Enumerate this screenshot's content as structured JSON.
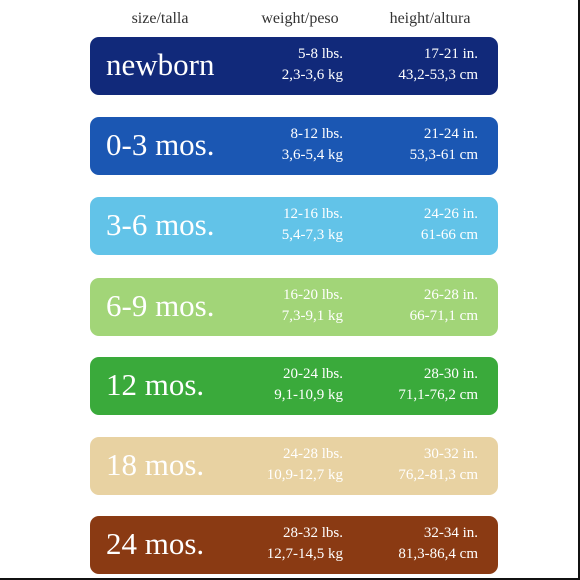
{
  "header": {
    "size": "size/talla",
    "weight": "weight/peso",
    "height": "height/altura"
  },
  "rows": [
    {
      "size": "newborn",
      "weight_lbs": "5-8 lbs.",
      "weight_kg": "2,3-3,6 kg",
      "height_in": "17-21 in.",
      "height_cm": "43,2-53,3 cm",
      "color": "#11297a"
    },
    {
      "size": "0-3 mos.",
      "weight_lbs": "8-12 lbs.",
      "weight_kg": "3,6-5,4 kg",
      "height_in": "21-24 in.",
      "height_cm": "53,3-61 cm",
      "color": "#1b57b3"
    },
    {
      "size": "3-6 mos.",
      "weight_lbs": "12-16 lbs.",
      "weight_kg": "5,4-7,3 kg",
      "height_in": "24-26 in.",
      "height_cm": "61-66 cm",
      "color": "#62c3e8"
    },
    {
      "size": "6-9 mos.",
      "weight_lbs": "16-20 lbs.",
      "weight_kg": "7,3-9,1 kg",
      "height_in": "26-28 in.",
      "height_cm": "66-71,1 cm",
      "color": "#a2d578"
    },
    {
      "size": "12 mos.",
      "weight_lbs": "20-24 lbs.",
      "weight_kg": "9,1-10,9 kg",
      "height_in": "28-30 in.",
      "height_cm": "71,1-76,2 cm",
      "color": "#3aaa3b"
    },
    {
      "size": "18 mos.",
      "weight_lbs": "24-28 lbs.",
      "weight_kg": "10,9-12,7 kg",
      "height_in": "30-32 in.",
      "height_cm": "76,2-81,3 cm",
      "color": "#e8d2a2"
    },
    {
      "size": "24 mos.",
      "weight_lbs": "28-32 lbs.",
      "weight_kg": "12,7-14,5 kg",
      "height_in": "32-34 in.",
      "height_cm": "81,3-86,4 cm",
      "color": "#8a3a13"
    }
  ]
}
